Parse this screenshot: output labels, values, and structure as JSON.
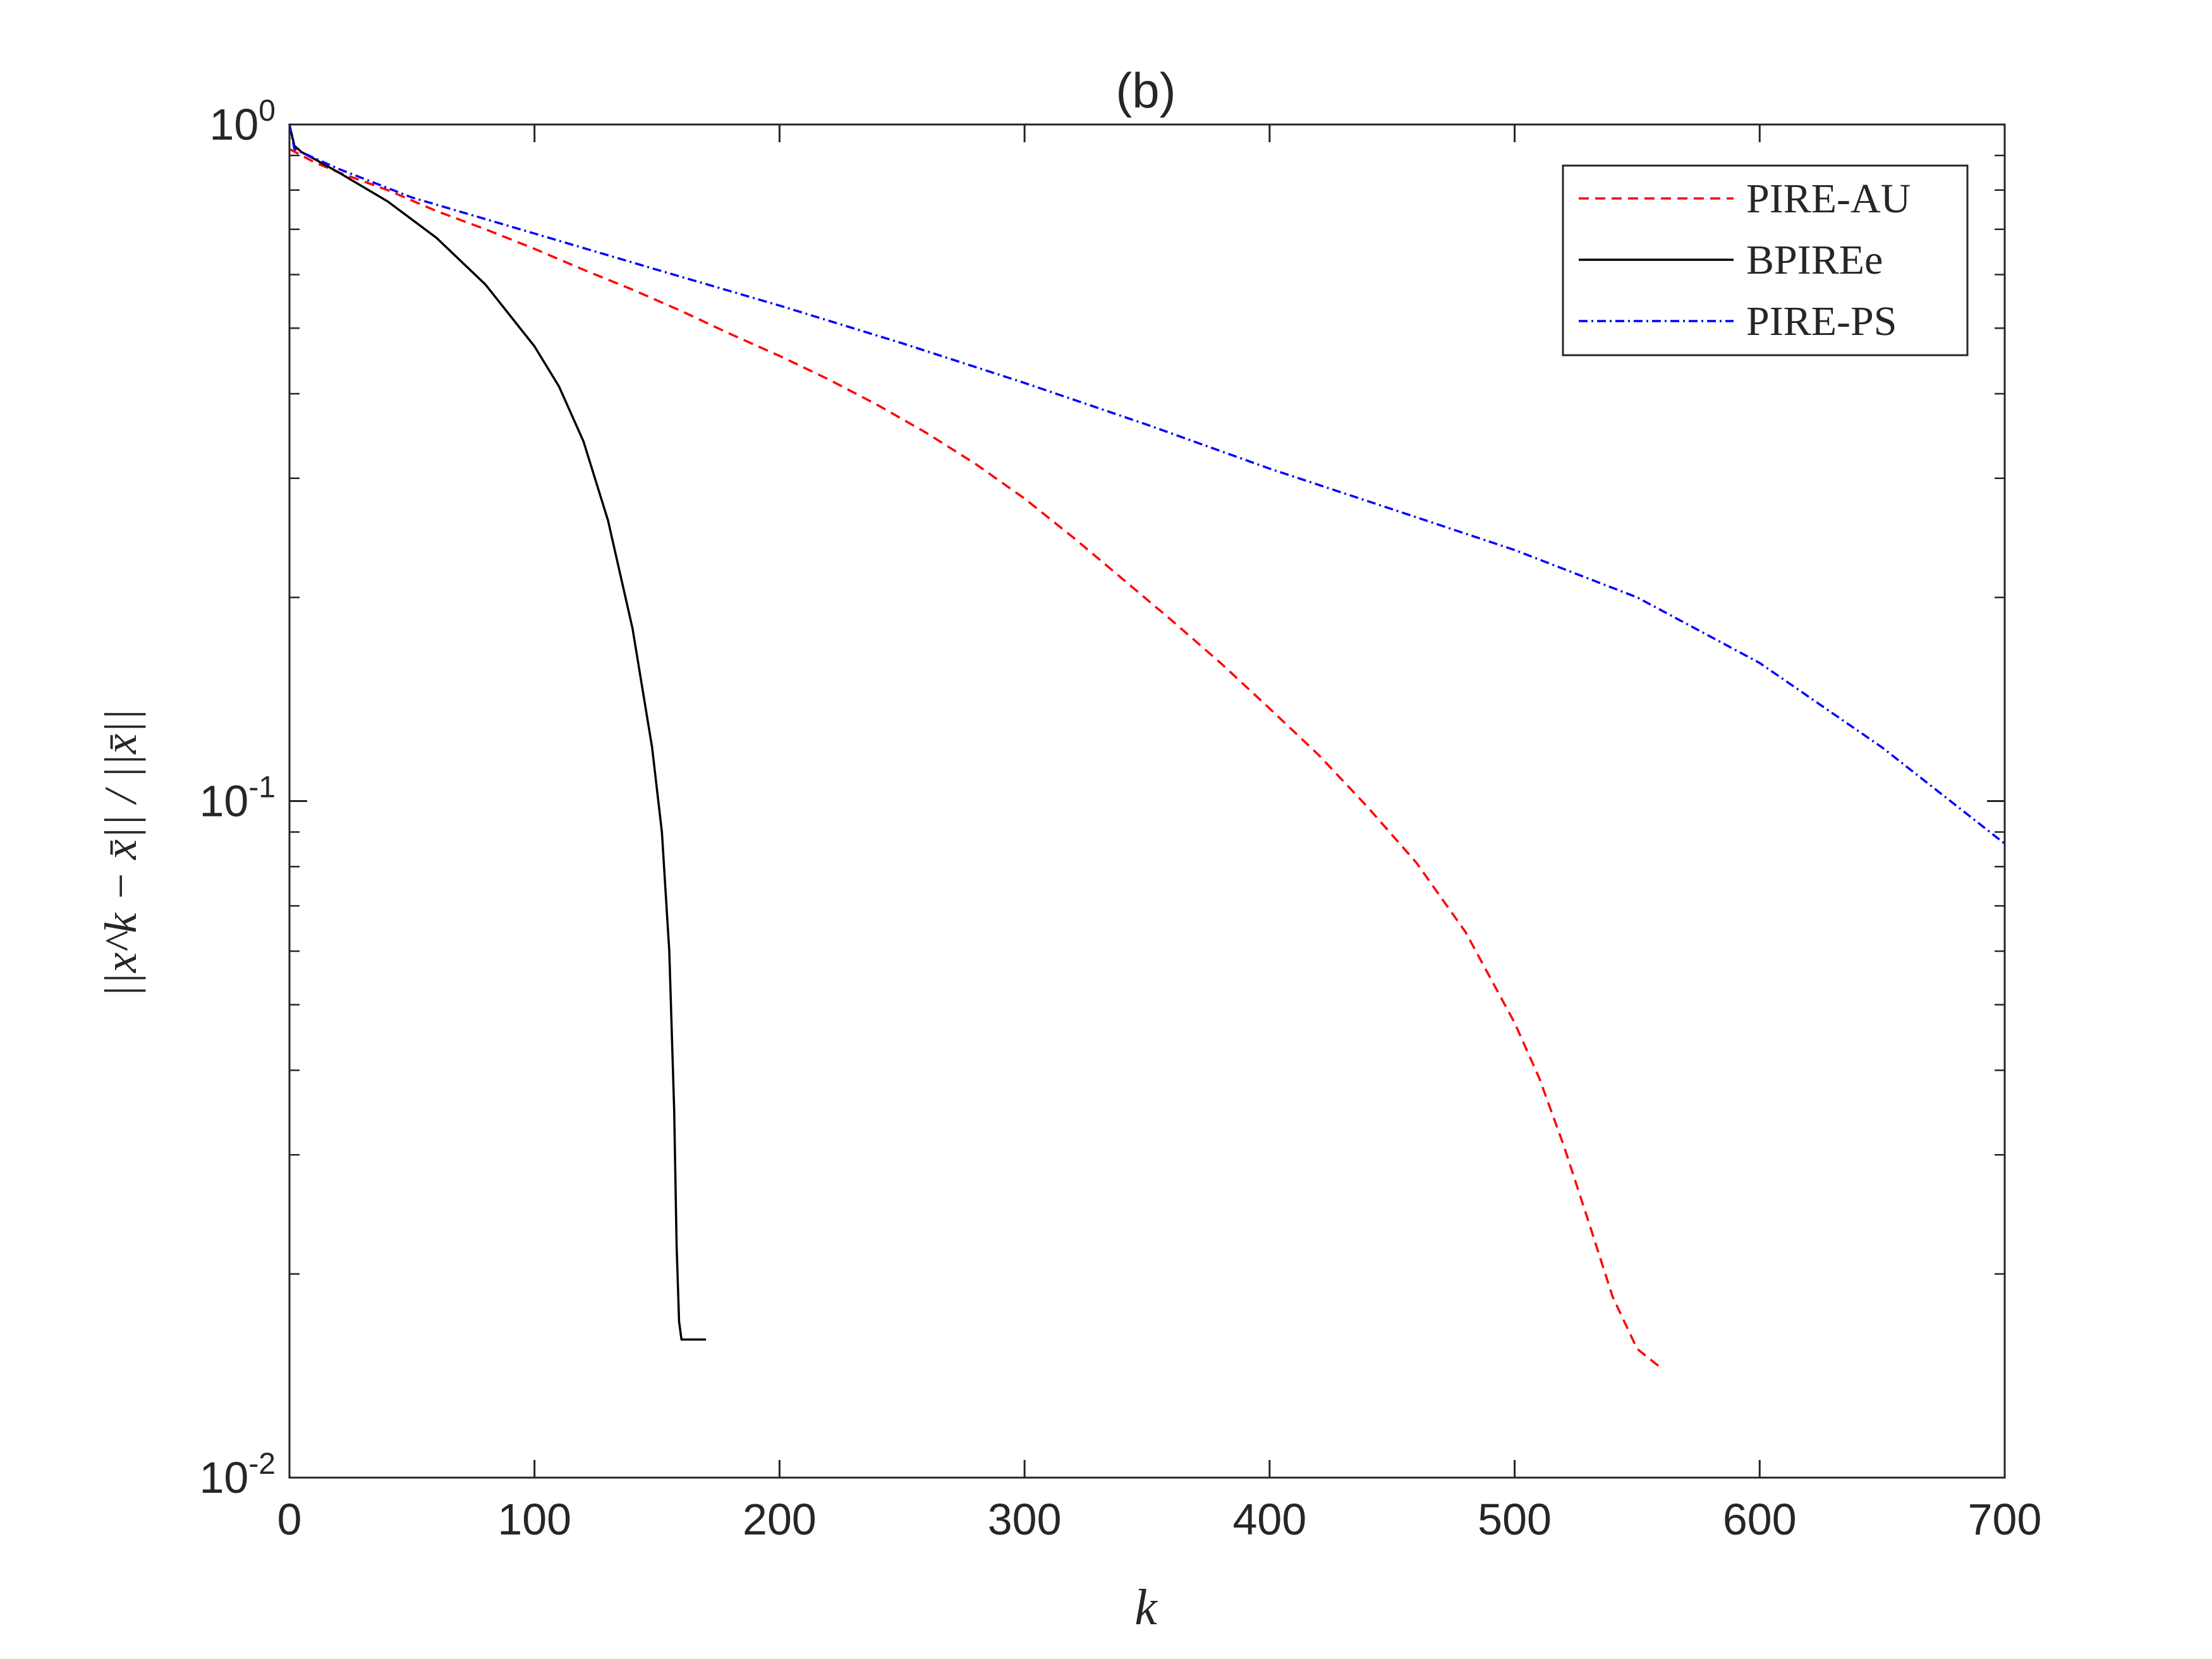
{
  "chart_data": {
    "type": "line",
    "title": "(b)",
    "xlabel": "k",
    "ylabel": "||x^k − x̄|| / ||x̄||",
    "xlim": [
      0,
      700
    ],
    "ylim": [
      0.01,
      1
    ],
    "yscale": "log",
    "grid": false,
    "legend_position": "top-right",
    "x_ticks": [
      0,
      100,
      200,
      300,
      400,
      500,
      600,
      700
    ],
    "x_tick_labels": [
      "0",
      "100",
      "200",
      "300",
      "400",
      "500",
      "600",
      "700"
    ],
    "y_ticks": [
      {
        "value": 1,
        "base": "10",
        "exp": "0"
      },
      {
        "value": 0.1,
        "base": "10",
        "exp": "-1"
      },
      {
        "value": 0.01,
        "base": "10",
        "exp": "-2"
      }
    ],
    "series": [
      {
        "name": "PIRE-AU",
        "color": "#ff0000",
        "dash": "dashed",
        "points": [
          [
            0,
            0.92
          ],
          [
            10,
            0.88
          ],
          [
            20,
            0.85
          ],
          [
            40,
            0.8
          ],
          [
            60,
            0.745
          ],
          [
            80,
            0.7
          ],
          [
            100,
            0.655
          ],
          [
            120,
            0.61
          ],
          [
            140,
            0.57
          ],
          [
            160,
            0.53
          ],
          [
            180,
            0.49
          ],
          [
            200,
            0.455
          ],
          [
            220,
            0.42
          ],
          [
            240,
            0.385
          ],
          [
            260,
            0.35
          ],
          [
            280,
            0.315
          ],
          [
            300,
            0.28
          ],
          [
            320,
            0.245
          ],
          [
            340,
            0.213
          ],
          [
            360,
            0.185
          ],
          [
            380,
            0.16
          ],
          [
            400,
            0.137
          ],
          [
            420,
            0.117
          ],
          [
            440,
            0.098
          ],
          [
            460,
            0.081
          ],
          [
            480,
            0.064
          ],
          [
            500,
            0.047
          ],
          [
            510,
            0.039
          ],
          [
            520,
            0.031
          ],
          [
            530,
            0.024
          ],
          [
            540,
            0.0185
          ],
          [
            550,
            0.0155
          ],
          [
            560,
            0.0145
          ]
        ]
      },
      {
        "name": "BPIREe",
        "color": "#000000",
        "dash": "solid",
        "points": [
          [
            0,
            1.0
          ],
          [
            2,
            0.93
          ],
          [
            5,
            0.91
          ],
          [
            10,
            0.89
          ],
          [
            20,
            0.85
          ],
          [
            40,
            0.77
          ],
          [
            60,
            0.68
          ],
          [
            80,
            0.58
          ],
          [
            100,
            0.47
          ],
          [
            110,
            0.41
          ],
          [
            120,
            0.34
          ],
          [
            130,
            0.26
          ],
          [
            140,
            0.18
          ],
          [
            148,
            0.12
          ],
          [
            152,
            0.09
          ],
          [
            155,
            0.06
          ],
          [
            157,
            0.035
          ],
          [
            158,
            0.022
          ],
          [
            159,
            0.017
          ],
          [
            160,
            0.016
          ],
          [
            170,
            0.016
          ]
        ]
      },
      {
        "name": "PIRE-PS",
        "color": "#0000ff",
        "dash": "dashdot",
        "points": [
          [
            0,
            1.0
          ],
          [
            2,
            0.92
          ],
          [
            20,
            0.86
          ],
          [
            50,
            0.78
          ],
          [
            100,
            0.69
          ],
          [
            150,
            0.61
          ],
          [
            200,
            0.54
          ],
          [
            250,
            0.475
          ],
          [
            300,
            0.415
          ],
          [
            350,
            0.36
          ],
          [
            400,
            0.31
          ],
          [
            450,
            0.27
          ],
          [
            500,
            0.235
          ],
          [
            550,
            0.2
          ],
          [
            600,
            0.16
          ],
          [
            650,
            0.12
          ],
          [
            700,
            0.0865
          ]
        ]
      }
    ]
  }
}
